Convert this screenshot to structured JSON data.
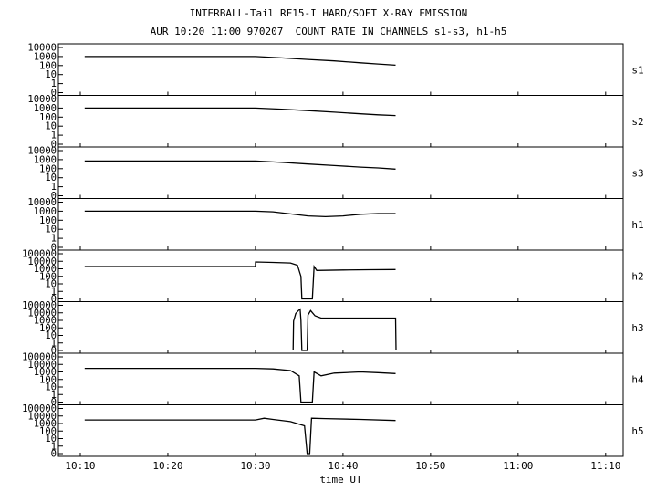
{
  "chart_data": {
    "type": "line",
    "title": "INTERBALL-Tail RF15-I HARD/SOFT X-RAY EMISSION",
    "subtitle": "AUR 10:20 11:00 970207  COUNT RATE IN CHANNELS s1-s3, h1-h5",
    "xlabel": "time UT",
    "x_ticks": [
      "10:10",
      "10:20",
      "10:30",
      "10:40",
      "10:50",
      "11:00",
      "11:10"
    ],
    "x_tick_minutes": [
      10,
      20,
      30,
      40,
      50,
      60,
      70
    ],
    "xlim_minutes": [
      7.5,
      72
    ],
    "grid": false,
    "panels": [
      {
        "name": "s1",
        "yscale": "log",
        "y_ticks": [
          "10000",
          "1000",
          "100",
          "10",
          "1",
          "0"
        ],
        "points": [
          [
            10.5,
            1000
          ],
          [
            30,
            1000
          ],
          [
            33,
            700
          ],
          [
            36,
            480
          ],
          [
            39,
            330
          ],
          [
            42,
            200
          ],
          [
            44,
            150
          ],
          [
            46,
            110
          ]
        ]
      },
      {
        "name": "s2",
        "yscale": "log",
        "y_ticks": [
          "10000",
          "1000",
          "100",
          "10",
          "1",
          "0"
        ],
        "points": [
          [
            10.5,
            1000
          ],
          [
            30,
            1000
          ],
          [
            33,
            750
          ],
          [
            36,
            520
          ],
          [
            39,
            350
          ],
          [
            42,
            230
          ],
          [
            44,
            180
          ],
          [
            46,
            150
          ]
        ]
      },
      {
        "name": "s3",
        "yscale": "log",
        "y_ticks": [
          "10000",
          "1000",
          "100",
          "10",
          "1",
          "0"
        ],
        "points": [
          [
            10.5,
            700
          ],
          [
            30,
            700
          ],
          [
            33,
            500
          ],
          [
            36,
            330
          ],
          [
            39,
            220
          ],
          [
            42,
            150
          ],
          [
            44,
            120
          ],
          [
            46,
            90
          ]
        ]
      },
      {
        "name": "h1",
        "yscale": "log",
        "y_ticks": [
          "10000",
          "1000",
          "100",
          "10",
          "1",
          "0"
        ],
        "points": [
          [
            10.5,
            1000
          ],
          [
            30,
            1000
          ],
          [
            32,
            850
          ],
          [
            34,
            500
          ],
          [
            36,
            300
          ],
          [
            38,
            250
          ],
          [
            40,
            300
          ],
          [
            42,
            450
          ],
          [
            44,
            550
          ],
          [
            46,
            550
          ]
        ]
      },
      {
        "name": "h2",
        "yscale": "log",
        "y_ticks": [
          "100000",
          "10000",
          "1000",
          "100",
          "10",
          "1",
          "0"
        ],
        "points": [
          [
            10.5,
            2000
          ],
          [
            30,
            2000
          ],
          [
            30.01,
            8000
          ],
          [
            32,
            7000
          ],
          [
            34,
            6000
          ],
          [
            34.8,
            3000
          ],
          [
            35.2,
            100
          ],
          [
            35.3,
            0.1
          ],
          [
            36.5,
            0.1
          ],
          [
            36.7,
            2000
          ],
          [
            37,
            600
          ],
          [
            40,
            700
          ],
          [
            43,
            750
          ],
          [
            46,
            800
          ]
        ]
      },
      {
        "name": "h3",
        "yscale": "log",
        "y_ticks": [
          "100000",
          "10000",
          "1000",
          "100",
          "10",
          "1",
          "0"
        ],
        "points": [
          [
            34.3,
            0.1
          ],
          [
            34.35,
            800
          ],
          [
            34.6,
            8000
          ],
          [
            34.9,
            20000
          ],
          [
            35.1,
            30000
          ],
          [
            35.2,
            1000
          ],
          [
            35.3,
            0.1
          ],
          [
            35.9,
            0.1
          ],
          [
            36,
            5000
          ],
          [
            36.3,
            20000
          ],
          [
            36.8,
            4000
          ],
          [
            37.5,
            2000
          ],
          [
            46,
            2000
          ],
          [
            46.05,
            0.1
          ]
        ]
      },
      {
        "name": "h4",
        "yscale": "log",
        "y_ticks": [
          "100000",
          "10000",
          "1000",
          "100",
          "10",
          "1",
          "0"
        ],
        "points": [
          [
            10.5,
            3000
          ],
          [
            30,
            3000
          ],
          [
            32,
            2500
          ],
          [
            34,
            1500
          ],
          [
            35,
            300
          ],
          [
            35.2,
            0.1
          ],
          [
            36.5,
            0.1
          ],
          [
            36.7,
            1000
          ],
          [
            37.5,
            300
          ],
          [
            39,
            700
          ],
          [
            42,
            1000
          ],
          [
            44,
            800
          ],
          [
            46,
            600
          ]
        ]
      },
      {
        "name": "h5",
        "yscale": "log",
        "y_ticks": [
          "100000",
          "10000",
          "1000",
          "100",
          "10",
          "1",
          "0"
        ],
        "points": [
          [
            10.5,
            3000
          ],
          [
            30,
            3000
          ],
          [
            31,
            5000
          ],
          [
            32,
            3500
          ],
          [
            34,
            1800
          ],
          [
            35.6,
            500
          ],
          [
            35.9,
            0.05
          ],
          [
            36.2,
            0.05
          ],
          [
            36.4,
            5000
          ],
          [
            38,
            4500
          ],
          [
            42,
            3500
          ],
          [
            46,
            2500
          ]
        ]
      }
    ]
  }
}
